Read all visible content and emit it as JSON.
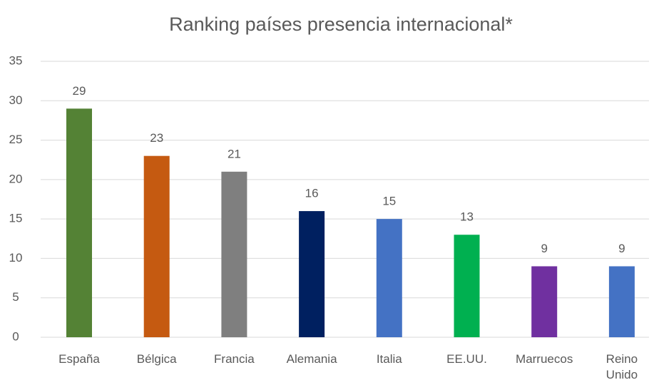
{
  "chart_data": {
    "type": "bar",
    "title": "Ranking países presencia internacional*",
    "categories": [
      "España",
      "Bélgica",
      "Francia",
      "Alemania",
      "Italia",
      "EE.UU.",
      "Marruecos",
      "Reino Unido"
    ],
    "values": [
      29,
      23,
      21,
      16,
      15,
      13,
      9,
      9
    ],
    "colors": [
      "#548235",
      "#c55a11",
      "#7f7f7f",
      "#002060",
      "#4472c4",
      "#00b050",
      "#7030a0",
      "#4472c4"
    ],
    "ylim": [
      0,
      35
    ],
    "yticks": [
      0,
      5,
      10,
      15,
      20,
      25,
      30,
      35
    ],
    "grid": true
  }
}
